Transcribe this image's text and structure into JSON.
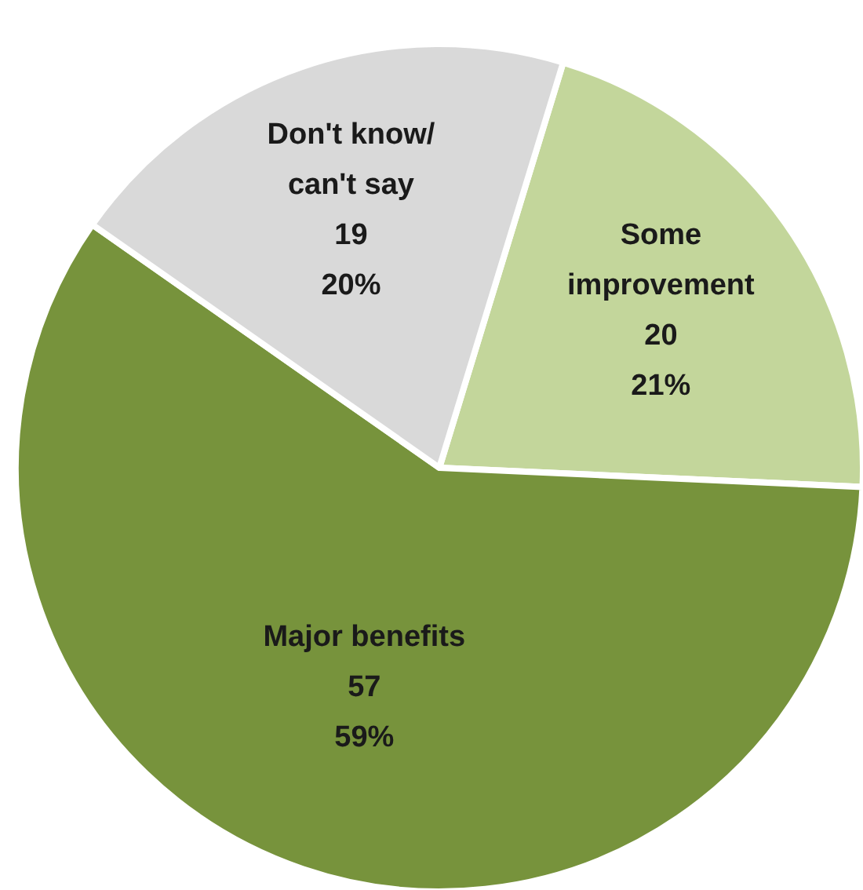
{
  "chart_data": {
    "type": "pie",
    "categories": [
      "Some improvement",
      "Major benefits",
      "Don't know/ can't say"
    ],
    "values": [
      21,
      59,
      20
    ],
    "colors": [
      "#c3d69b",
      "#77933c",
      "#d9d9d9"
    ],
    "value_labels": [
      "20\n21%",
      "57\n59%",
      "19\n20%"
    ]
  }
}
